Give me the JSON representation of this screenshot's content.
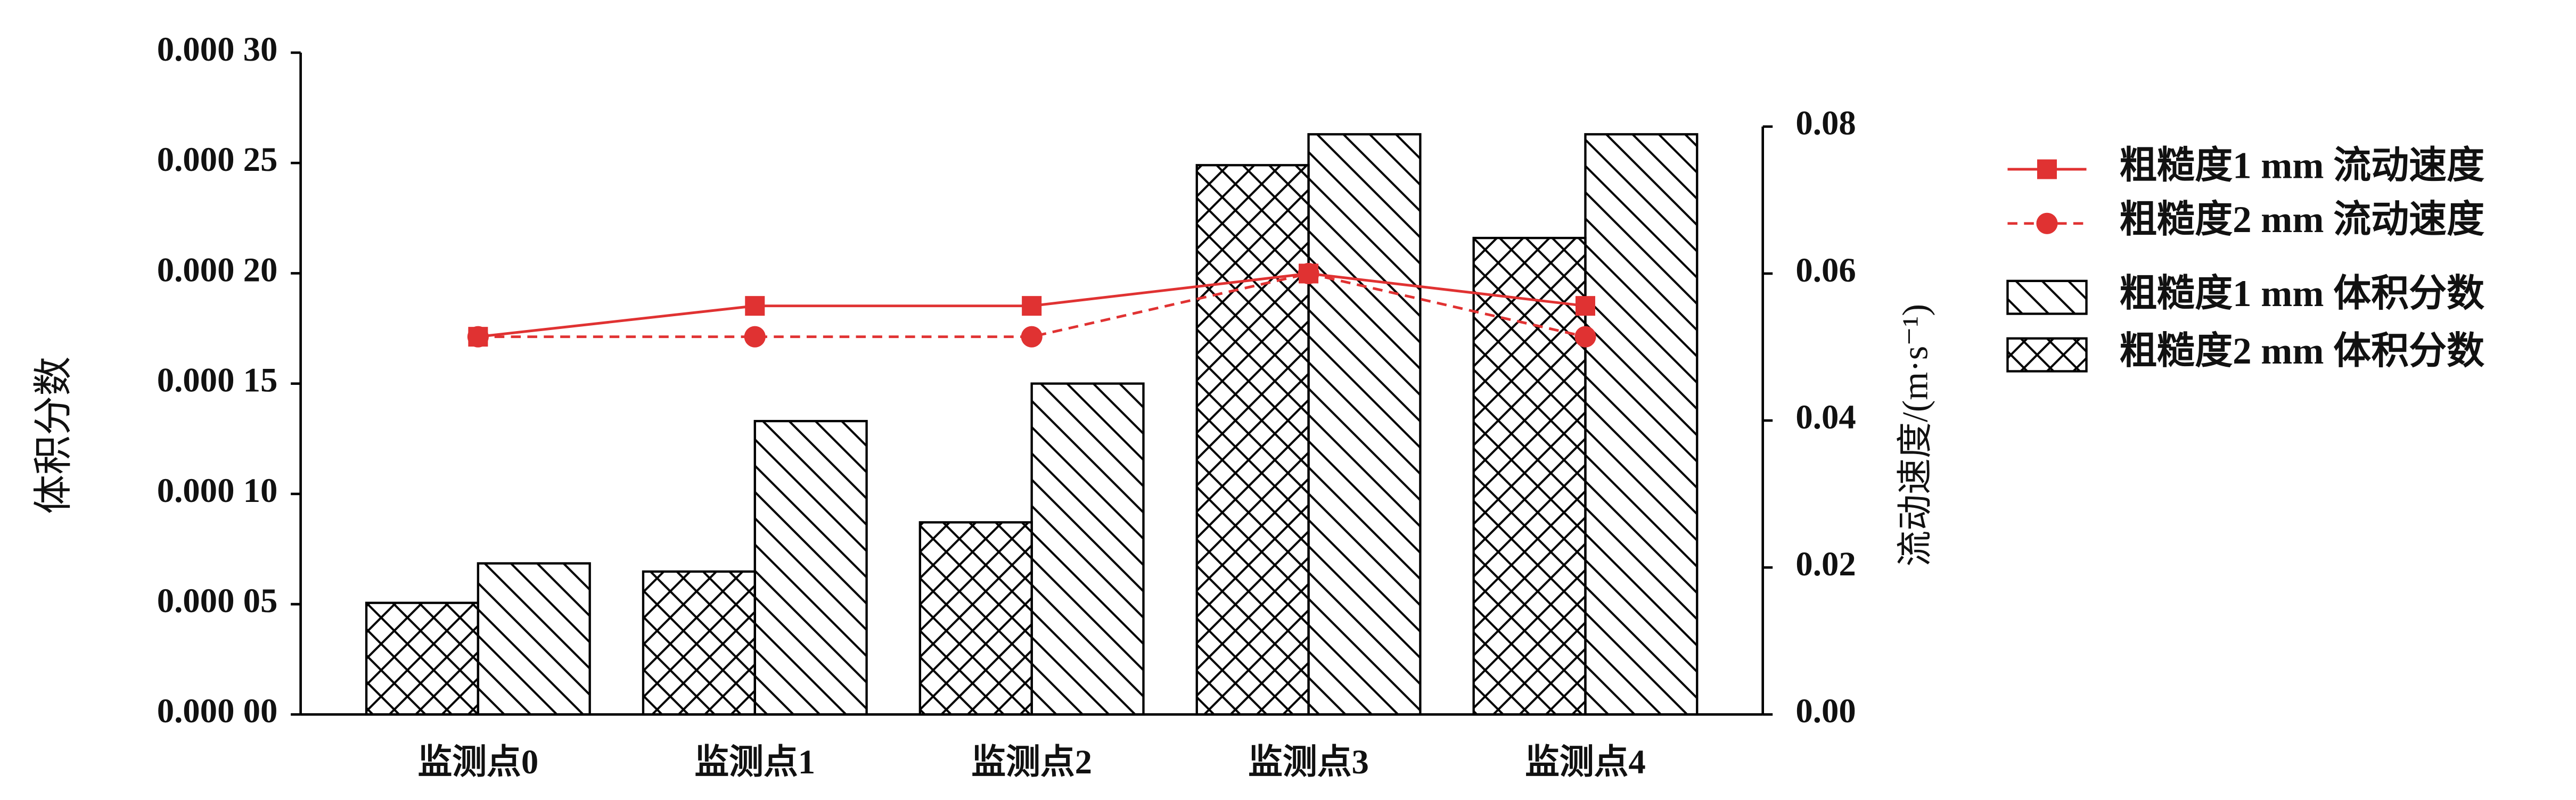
{
  "chart_data": {
    "type": "bar-line",
    "y_label": "体积分数",
    "y2_label": "流动速度/(m·s⁻¹)",
    "categories": [
      "监测点0",
      "监测点1",
      "监测点2",
      "监测点3",
      "监测点4"
    ],
    "ylim": [
      0,
      0.0003
    ],
    "yticks": [
      {
        "value": 0,
        "label": "0.000 00"
      },
      {
        "value": 5e-05,
        "label": "0.000 05"
      },
      {
        "value": 0.0001,
        "label": "0.000 10"
      },
      {
        "value": 0.00015,
        "label": "0.000 15"
      },
      {
        "value": 0.0002,
        "label": "0.000 20"
      },
      {
        "value": 0.00025,
        "label": "0.000 25"
      },
      {
        "value": 0.0003,
        "label": "0.000 30"
      }
    ],
    "y2lim": [
      0,
      0.08
    ],
    "y2ticks": [
      {
        "value": 0,
        "label": "0.00"
      },
      0.02,
      0.04,
      0.06,
      0.08
    ],
    "series": [
      {
        "name": "粗糙度1 mm 流动速度",
        "kind": "line",
        "axis": "y2",
        "color": "#e03232",
        "marker": "square",
        "dash": false,
        "values": [
          0.0514,
          0.0556,
          0.0556,
          0.06,
          0.0556
        ]
      },
      {
        "name": "粗糙度2 mm 流动速度",
        "kind": "line",
        "axis": "y2",
        "color": "#e03232",
        "marker": "circle",
        "dash": true,
        "values": [
          0.0514,
          0.0514,
          0.0514,
          0.06,
          0.0514
        ]
      },
      {
        "name": "粗糙度1 mm 体积分数",
        "kind": "bar",
        "pattern": "diagonal",
        "color": "#000000",
        "values": [
          6.85e-05,
          0.000133,
          0.00015,
          0.000263,
          0.000263
        ]
      },
      {
        "name": "粗糙度2 mm 体积分数",
        "kind": "bar",
        "pattern": "crosshatch",
        "color": "#000000",
        "values": [
          5.06e-05,
          6.48e-05,
          8.71e-05,
          0.000249,
          0.000216
        ]
      }
    ]
  }
}
